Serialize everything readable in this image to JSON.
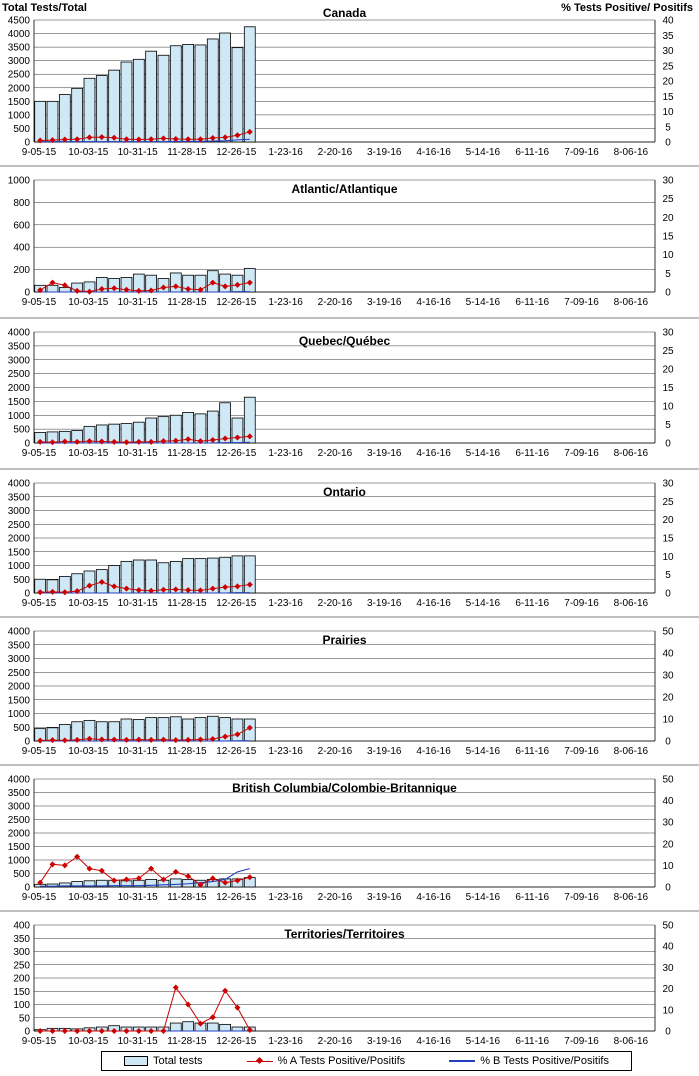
{
  "header": {
    "left_axis_title": "Total Tests/Total",
    "right_axis_title": "% Tests Positive/ Positifs"
  },
  "legend": {
    "total_tests": "Total tests",
    "pct_a": "% A Tests Positive/Positifs",
    "pct_b": "% B Tests Positive/Positifs"
  },
  "colors": {
    "bar_fill": "#cfe8f6",
    "bar_stroke": "#000000",
    "series_a": "#cc0000",
    "series_b": "#1f3fbf",
    "grid": "#000000"
  },
  "chart_data": [
    {
      "type": "bar",
      "title": "Canada",
      "categories": [
        "9-05-15",
        "10-03-15",
        "10-31-15",
        "11-28-15",
        "12-26-15",
        "1-23-16",
        "2-20-16",
        "3-19-16",
        "4-16-16",
        "5-14-16",
        "6-11-16",
        "7-09-16",
        "8-06-16"
      ],
      "ylim": [
        0,
        4500
      ],
      "y_ticks": [
        0,
        500,
        1000,
        1500,
        2000,
        2500,
        3000,
        3500,
        4000,
        4500
      ],
      "y2lim": [
        0,
        40
      ],
      "y2_ticks": [
        0,
        5,
        10,
        15,
        20,
        25,
        30,
        35,
        40
      ],
      "total_tests": [
        1500,
        1500,
        1750,
        1980,
        2350,
        2450,
        2650,
        2950,
        3050,
        3350,
        3200,
        3550,
        3600,
        3580,
        3800,
        4020,
        3480,
        4250
      ],
      "pct_a": [
        0.5,
        0.6,
        0.8,
        0.9,
        1.5,
        1.6,
        1.4,
        0.9,
        0.8,
        0.9,
        1.2,
        1.0,
        0.9,
        0.9,
        1.3,
        1.5,
        2.2,
        3.3
      ],
      "pct_b": [
        0.1,
        0.1,
        0.1,
        0.1,
        0.1,
        0.1,
        0.1,
        0.1,
        0.1,
        0.1,
        0.1,
        0.2,
        0.2,
        0.2,
        0.3,
        0.4,
        0.7,
        0.9
      ],
      "grid": true
    },
    {
      "type": "bar",
      "title": "Atlantic/Atlantique",
      "categories": [
        "9-05-15",
        "10-03-15",
        "10-31-15",
        "11-28-15",
        "12-26-15",
        "1-23-16",
        "2-20-16",
        "3-19-16",
        "4-16-16",
        "5-14-16",
        "6-11-16",
        "7-09-16",
        "8-06-16"
      ],
      "ylim": [
        0,
        1000
      ],
      "y_ticks": [
        0,
        200,
        400,
        600,
        800,
        1000
      ],
      "y2lim": [
        0,
        30
      ],
      "y2_ticks": [
        0,
        5,
        10,
        15,
        20,
        25,
        30
      ],
      "total_tests": [
        60,
        60,
        40,
        80,
        90,
        130,
        120,
        130,
        160,
        150,
        120,
        170,
        150,
        150,
        190,
        160,
        150,
        210
      ],
      "pct_a": [
        0.5,
        2.5,
        1.8,
        0.3,
        0.1,
        0.8,
        1.0,
        0.6,
        0.3,
        0.4,
        1.2,
        1.5,
        0.8,
        0.6,
        2.5,
        1.5,
        1.9,
        2.5
      ],
      "pct_b": [
        0,
        0,
        0,
        0,
        0,
        0,
        0,
        0,
        0,
        0,
        0,
        0,
        0,
        0,
        0,
        0,
        0.1,
        0.1
      ],
      "grid": true
    },
    {
      "type": "bar",
      "title": "Quebec/Québec",
      "categories": [
        "9-05-15",
        "10-03-15",
        "10-31-15",
        "11-28-15",
        "12-26-15",
        "1-23-16",
        "2-20-16",
        "3-19-16",
        "4-16-16",
        "5-14-16",
        "6-11-16",
        "7-09-16",
        "8-06-16"
      ],
      "ylim": [
        0,
        4000
      ],
      "y_ticks": [
        0,
        500,
        1000,
        1500,
        2000,
        2500,
        3000,
        3500,
        4000
      ],
      "y2lim": [
        0,
        30
      ],
      "y2_ticks": [
        0,
        5,
        10,
        15,
        20,
        25,
        30
      ],
      "total_tests": [
        380,
        400,
        420,
        450,
        600,
        650,
        680,
        700,
        750,
        900,
        950,
        1000,
        1100,
        1050,
        1150,
        1450,
        900,
        1650
      ],
      "pct_a": [
        0.3,
        0.2,
        0.4,
        0.3,
        0.5,
        0.4,
        0.3,
        0.2,
        0.3,
        0.3,
        0.5,
        0.6,
        1.0,
        0.5,
        0.8,
        1.2,
        1.5,
        1.8
      ],
      "pct_b": [
        0,
        0,
        0,
        0,
        0,
        0,
        0,
        0,
        0,
        0,
        0,
        0,
        0,
        0,
        0,
        0.1,
        0.1,
        0.2
      ],
      "grid": true
    },
    {
      "type": "bar",
      "title": "Ontario",
      "categories": [
        "9-05-15",
        "10-03-15",
        "10-31-15",
        "11-28-15",
        "12-26-15",
        "1-23-16",
        "2-20-16",
        "3-19-16",
        "4-16-16",
        "5-14-16",
        "6-11-16",
        "7-09-16",
        "8-06-16"
      ],
      "ylim": [
        0,
        4000
      ],
      "y_ticks": [
        0,
        500,
        1000,
        1500,
        2000,
        2500,
        3000,
        3500,
        4000
      ],
      "y2lim": [
        0,
        30
      ],
      "y2_ticks": [
        0,
        5,
        10,
        15,
        20,
        25,
        30
      ],
      "total_tests": [
        500,
        480,
        600,
        700,
        800,
        850,
        1000,
        1150,
        1200,
        1200,
        1100,
        1150,
        1250,
        1250,
        1270,
        1300,
        1350,
        1350
      ],
      "pct_a": [
        0.2,
        0.3,
        0.2,
        0.5,
        2.0,
        3.0,
        1.8,
        1.2,
        0.8,
        0.6,
        0.9,
        1.0,
        0.8,
        0.7,
        1.2,
        1.6,
        1.8,
        2.3
      ],
      "pct_b": [
        0,
        0,
        0,
        0,
        0,
        0,
        0,
        0,
        0,
        0,
        0,
        0,
        0,
        0,
        0,
        0,
        0.1,
        0.1
      ],
      "grid": true
    },
    {
      "type": "bar",
      "title": "Prairies",
      "categories": [
        "9-05-15",
        "10-03-15",
        "10-31-15",
        "11-28-15",
        "12-26-15",
        "1-23-16",
        "2-20-16",
        "3-19-16",
        "4-16-16",
        "5-14-16",
        "6-11-16",
        "7-09-16",
        "8-06-16"
      ],
      "ylim": [
        0,
        4000
      ],
      "y_ticks": [
        0,
        500,
        1000,
        1500,
        2000,
        2500,
        3000,
        3500,
        4000
      ],
      "y2lim": [
        0,
        50
      ],
      "y2_ticks": [
        0,
        10,
        20,
        30,
        40,
        50
      ],
      "total_tests": [
        450,
        480,
        600,
        700,
        750,
        700,
        700,
        800,
        780,
        850,
        850,
        880,
        800,
        850,
        900,
        850,
        800,
        800
      ],
      "pct_a": [
        0.2,
        0.4,
        0.3,
        0.5,
        1.0,
        0.7,
        0.6,
        0.5,
        0.6,
        0.5,
        0.6,
        0.4,
        0.5,
        0.7,
        0.9,
        2.0,
        3.0,
        6.0
      ],
      "pct_b": [
        0,
        0,
        0,
        0,
        0,
        0,
        0,
        0,
        0,
        0,
        0,
        0,
        0,
        0,
        0,
        0,
        0.1,
        0.1
      ],
      "grid": true
    },
    {
      "type": "bar",
      "title": "British Columbia/Colombie-Britannique",
      "categories": [
        "9-05-15",
        "10-03-15",
        "10-31-15",
        "11-28-15",
        "12-26-15",
        "1-23-16",
        "2-20-16",
        "3-19-16",
        "4-16-16",
        "5-14-16",
        "6-11-16",
        "7-09-16",
        "8-06-16"
      ],
      "ylim": [
        0,
        4000
      ],
      "y_ticks": [
        0,
        500,
        1000,
        1500,
        2000,
        2500,
        3000,
        3500,
        4000
      ],
      "y2lim": [
        0,
        50
      ],
      "y2_ticks": [
        0,
        10,
        20,
        30,
        40,
        50
      ],
      "total_tests": [
        100,
        110,
        150,
        200,
        230,
        250,
        250,
        230,
        250,
        280,
        250,
        300,
        280,
        250,
        280,
        300,
        300,
        350
      ],
      "pct_a": [
        2.0,
        10.5,
        10.0,
        14.0,
        8.5,
        7.5,
        3.0,
        3.5,
        4.0,
        8.5,
        3.5,
        7.0,
        5.0,
        1.0,
        4.0,
        2.0,
        3.0,
        4.5
      ],
      "pct_b": [
        0.3,
        0.3,
        0.5,
        0.5,
        0.5,
        0.5,
        0.6,
        0.6,
        0.6,
        0.8,
        1.0,
        1.2,
        1.5,
        2.0,
        2.5,
        3.5,
        7.0,
        8.5
      ],
      "grid": true
    },
    {
      "type": "bar",
      "title": "Territories/Territoires",
      "categories": [
        "9-05-15",
        "10-03-15",
        "10-31-15",
        "11-28-15",
        "12-26-15",
        "1-23-16",
        "2-20-16",
        "3-19-16",
        "4-16-16",
        "5-14-16",
        "6-11-16",
        "7-09-16",
        "8-06-16"
      ],
      "ylim": [
        0,
        400
      ],
      "y_ticks": [
        0,
        50,
        100,
        150,
        200,
        250,
        300,
        350,
        400
      ],
      "y2lim": [
        0,
        50
      ],
      "y2_ticks": [
        0,
        10,
        20,
        30,
        40,
        50
      ],
      "total_tests": [
        5,
        10,
        10,
        8,
        12,
        15,
        20,
        15,
        15,
        15,
        15,
        30,
        35,
        30,
        30,
        25,
        15,
        15
      ],
      "pct_a": [
        0,
        0,
        0,
        0,
        0,
        0,
        0,
        0,
        0,
        0,
        0,
        20.5,
        12.5,
        3.5,
        6.5,
        19.0,
        11.0,
        0.5
      ],
      "pct_b": [
        0,
        0,
        0,
        0,
        0,
        0,
        0,
        0,
        0,
        0,
        0,
        0,
        0,
        0,
        0,
        0,
        0,
        0
      ],
      "grid": true
    }
  ]
}
